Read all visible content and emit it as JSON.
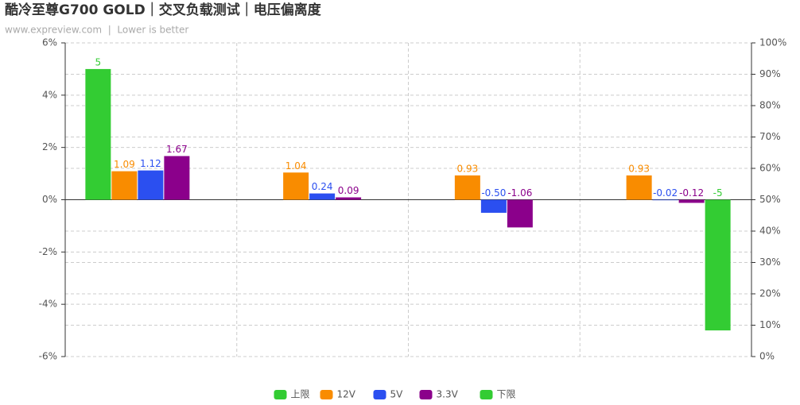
{
  "chart_data": {
    "type": "bar",
    "title": "酷冷至尊G700 GOLD｜交叉负载测试｜电压偏离度",
    "subtitle": "www.expreview.com  |  Lower is better",
    "categories": [
      null,
      null,
      null,
      null
    ],
    "series": [
      {
        "name": "上限",
        "color": "#33cc33",
        "values": [
          5,
          null,
          null,
          null
        ]
      },
      {
        "name": "12V",
        "color": "#f98c00",
        "values": [
          1.09,
          1.04,
          0.93,
          0.93
        ]
      },
      {
        "name": "5V",
        "color": "#2b4ff0",
        "values": [
          1.12,
          0.24,
          -0.5,
          -0.02
        ],
        "value_labels": [
          "1.12",
          "0.24",
          "-0.50",
          "-0.02"
        ]
      },
      {
        "name": "3.3V",
        "color": "#8b008b",
        "values": [
          1.67,
          0.09,
          -1.06,
          -0.12
        ]
      },
      {
        "name": "下限",
        "color": "#33cc33",
        "values": [
          null,
          null,
          null,
          -5
        ]
      }
    ],
    "ylim": [
      -6,
      6
    ],
    "yticks": [
      {
        "value": -6,
        "label": "-6%"
      },
      {
        "value": -4,
        "label": "-4%"
      },
      {
        "value": -2,
        "label": "-2%"
      },
      {
        "value": 0,
        "label": "0%"
      },
      {
        "value": 2,
        "label": "2%"
      },
      {
        "value": 4,
        "label": "4%"
      },
      {
        "value": 6,
        "label": "6%"
      }
    ],
    "y2lim": [
      0,
      100
    ],
    "y2ticks": [
      {
        "value": 0,
        "label": "0%"
      },
      {
        "value": 10,
        "label": "10%"
      },
      {
        "value": 20,
        "label": "20%"
      },
      {
        "value": 30,
        "label": "30%"
      },
      {
        "value": 40,
        "label": "40%"
      },
      {
        "value": 50,
        "label": "50%"
      },
      {
        "value": 60,
        "label": "60%"
      },
      {
        "value": 70,
        "label": "70%"
      },
      {
        "value": 80,
        "label": "80%"
      },
      {
        "value": 90,
        "label": "90%"
      },
      {
        "value": 100,
        "label": "100%"
      }
    ],
    "grid": true,
    "legend": "bottom"
  }
}
